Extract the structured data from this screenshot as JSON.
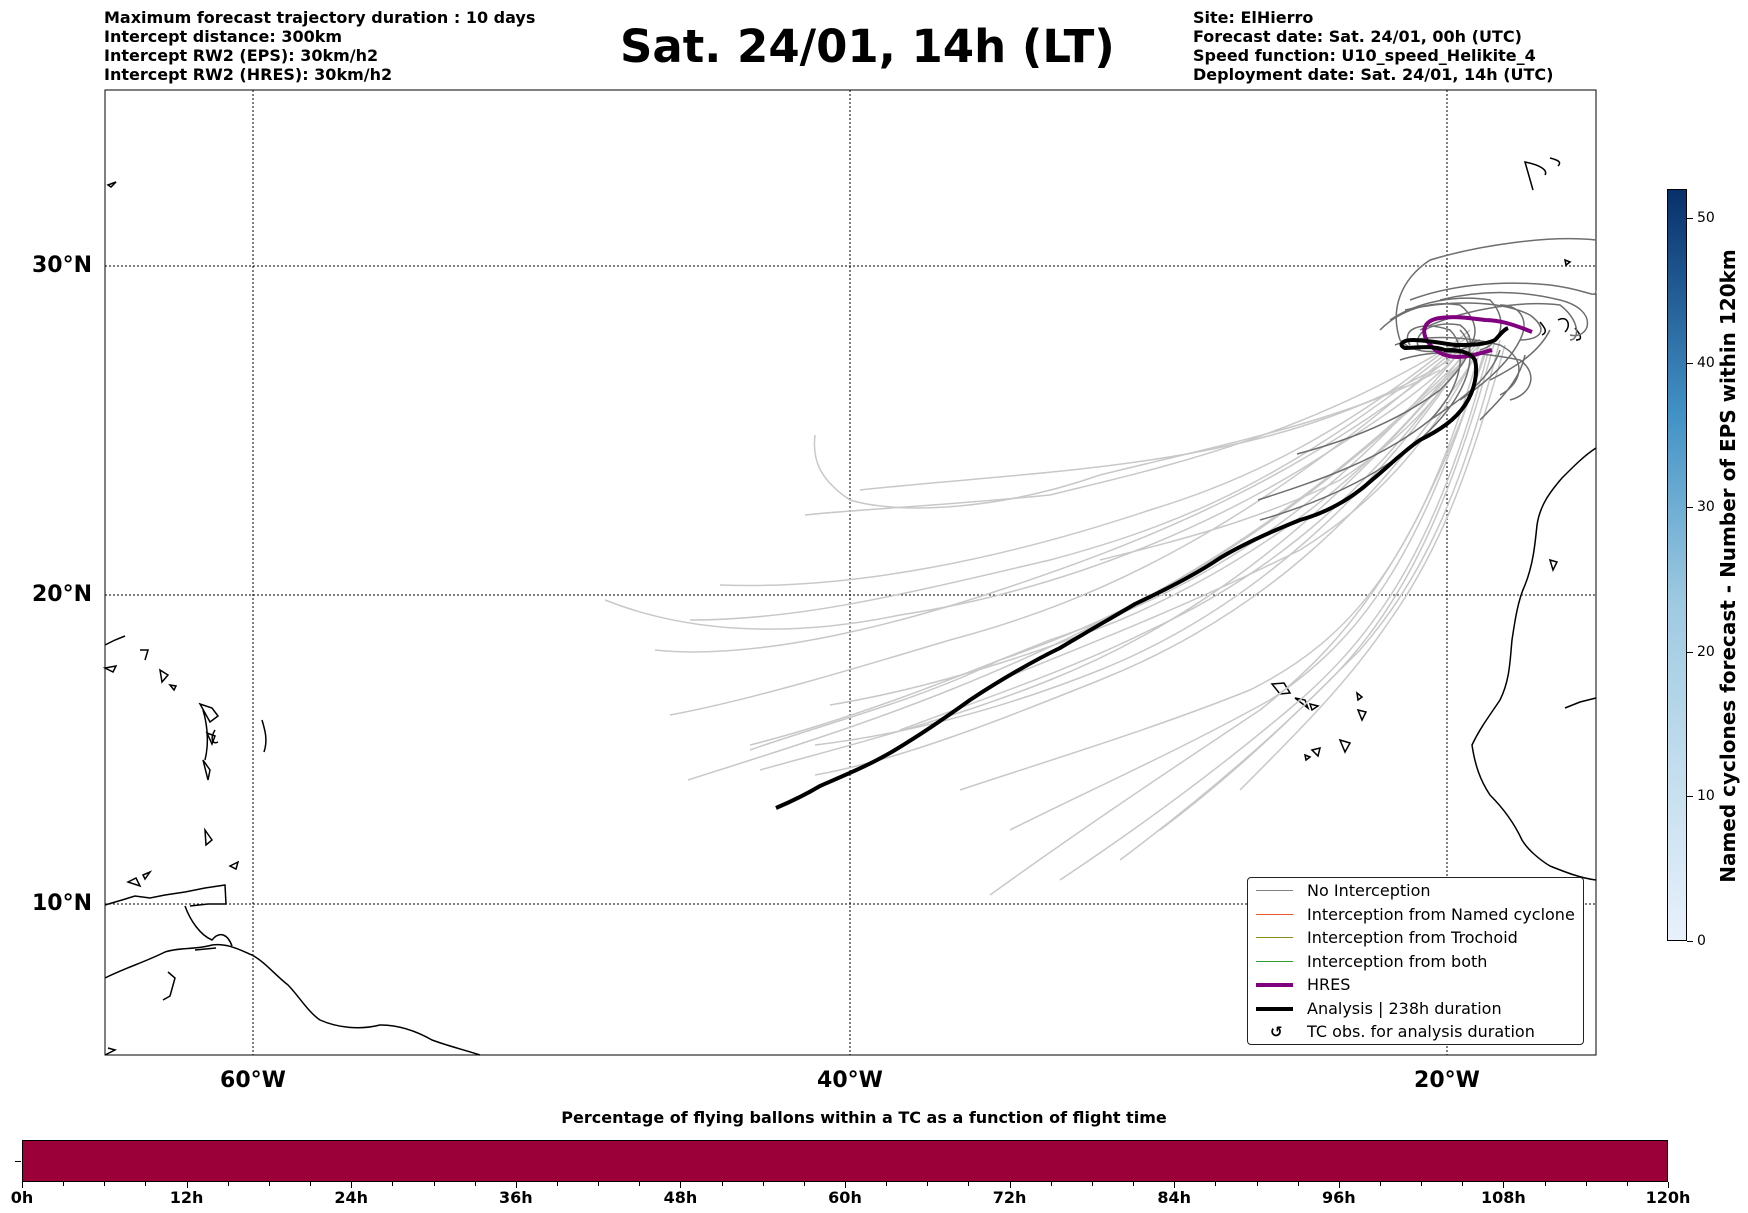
{
  "header": {
    "left_lines": [
      "Maximum forecast trajectory duration : 10 days",
      "Intercept distance: 300km",
      "Intercept RW2 (EPS):  30km/h2",
      "Intercept RW2 (HRES): 30km/h2"
    ],
    "title": "Sat. 24/01, 14h (LT)",
    "right_lines": [
      "Site: ElHierro",
      "Forecast date: Sat. 24/01, 00h (UTC)",
      "Speed function: U10_speed_Helikite_4",
      "Deployment date: Sat. 24/01, 14h (UTC)"
    ]
  },
  "map": {
    "lat_labels": [
      "30°N",
      "20°N",
      "10°N"
    ],
    "lon_labels": [
      "60°W",
      "40°W",
      "20°W"
    ],
    "grid": "dotted"
  },
  "legend": {
    "items": [
      {
        "label": "No Interception",
        "color": "#808080",
        "style": "thin"
      },
      {
        "label": "Interception from Named cyclone",
        "color": "#e8572a",
        "style": "thin"
      },
      {
        "label": "Interception from Trochoid",
        "color": "#8a8a1a",
        "style": "thin"
      },
      {
        "label": "Interception from both",
        "color": "#2ca02c",
        "style": "thin"
      },
      {
        "label": "HRES",
        "color": "#800080",
        "style": "thick"
      },
      {
        "label": "Analysis | 238h duration",
        "color": "#000000",
        "style": "thick"
      },
      {
        "label": "TC obs. for analysis duration",
        "icon": "↺"
      }
    ]
  },
  "colorbar": {
    "title": "Named cyclones forecast - Number of EPS within 120km",
    "ticks": [
      "0",
      "10",
      "20",
      "30",
      "40",
      "50"
    ],
    "max": 52,
    "color_low": "#e8f1fb",
    "color_high": "#08306b"
  },
  "time_bar": {
    "title": "Percentage of flying ballons within a TC as a function of flight time",
    "ticks": [
      "0h",
      "12h",
      "24h",
      "36h",
      "48h",
      "60h",
      "72h",
      "84h",
      "96h",
      "108h",
      "120h"
    ],
    "fill_color": "#9b0039",
    "percent_all_hours": 0
  }
}
